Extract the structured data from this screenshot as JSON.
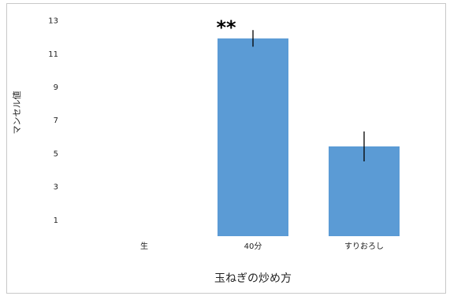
{
  "chart_data": {
    "type": "bar",
    "categories": [
      "生",
      "40分",
      "すりおろし"
    ],
    "values": [
      0,
      11.9,
      5.4
    ],
    "error_bars": [
      0,
      0.5,
      0.9
    ],
    "annotations": [
      {
        "category": "40分",
        "text": "**"
      }
    ],
    "xlabel": "玉ねぎの炒め方",
    "ylabel": "マンセル値",
    "yticks": [
      1,
      3,
      5,
      7,
      9,
      11,
      13
    ],
    "ylim": [
      0,
      13.5
    ],
    "grid": false,
    "bar_color": "#5b9bd5",
    "error_color": "#000000"
  }
}
